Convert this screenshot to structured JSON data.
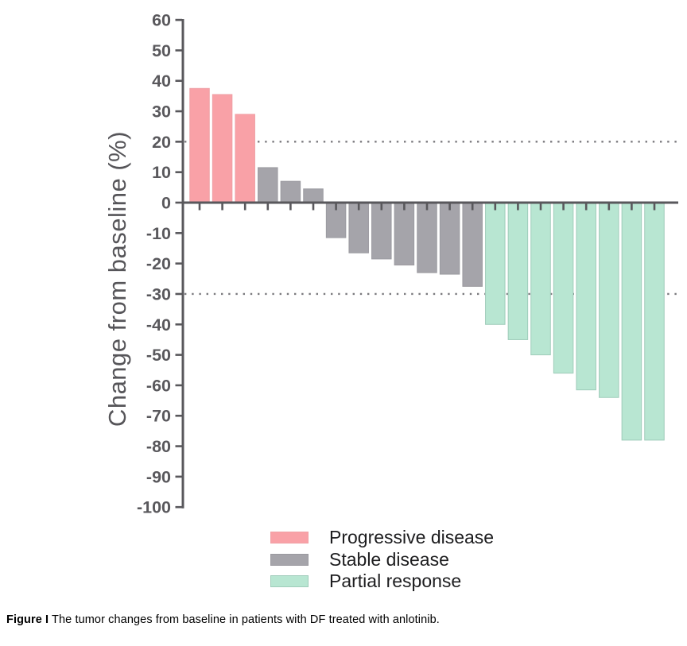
{
  "chart_data": {
    "type": "bar",
    "subtype": "waterfall",
    "title": "",
    "xlabel": "",
    "ylabel": "Change from baseline (%)",
    "ylim": [
      -100,
      60
    ],
    "yticks": [
      60,
      50,
      40,
      30,
      20,
      10,
      0,
      -10,
      -20,
      -30,
      -40,
      -50,
      -60,
      -70,
      -80,
      -90,
      -100
    ],
    "reference_lines": [
      20,
      -30
    ],
    "reference_line_style": "dotted",
    "grid": "off",
    "x_axis": {
      "tick_count": 21,
      "labels": "none",
      "note": "one bar per patient, sorted descending"
    },
    "legend_position": "bottom-center-inside",
    "series": [
      {
        "name": "Progressive disease",
        "color": "#F9A1A7",
        "stroke": "#efa0a5",
        "values": [
          37.5,
          35.5,
          29
        ]
      },
      {
        "name": "Stable disease",
        "color": "#A5A4AA",
        "stroke": "#9b9aa0",
        "values": [
          11.5,
          7,
          4.5,
          -11.5,
          -16.5,
          -18.5,
          -20.5,
          -23,
          -23.5,
          -27.5
        ]
      },
      {
        "name": "Partial response",
        "color": "#B8E6D2",
        "stroke": "#9fccba",
        "values": [
          -40,
          -45,
          -50,
          -56,
          -61.5,
          -64,
          -78,
          -78
        ]
      }
    ],
    "colors": {
      "axis": "#59585C",
      "tick_label": "#59585C",
      "reference_line": "#7b7a7e"
    }
  },
  "caption": {
    "label": "Figure I",
    "text": "The tumor changes from baseline in patients with DF treated with anlotinib."
  }
}
